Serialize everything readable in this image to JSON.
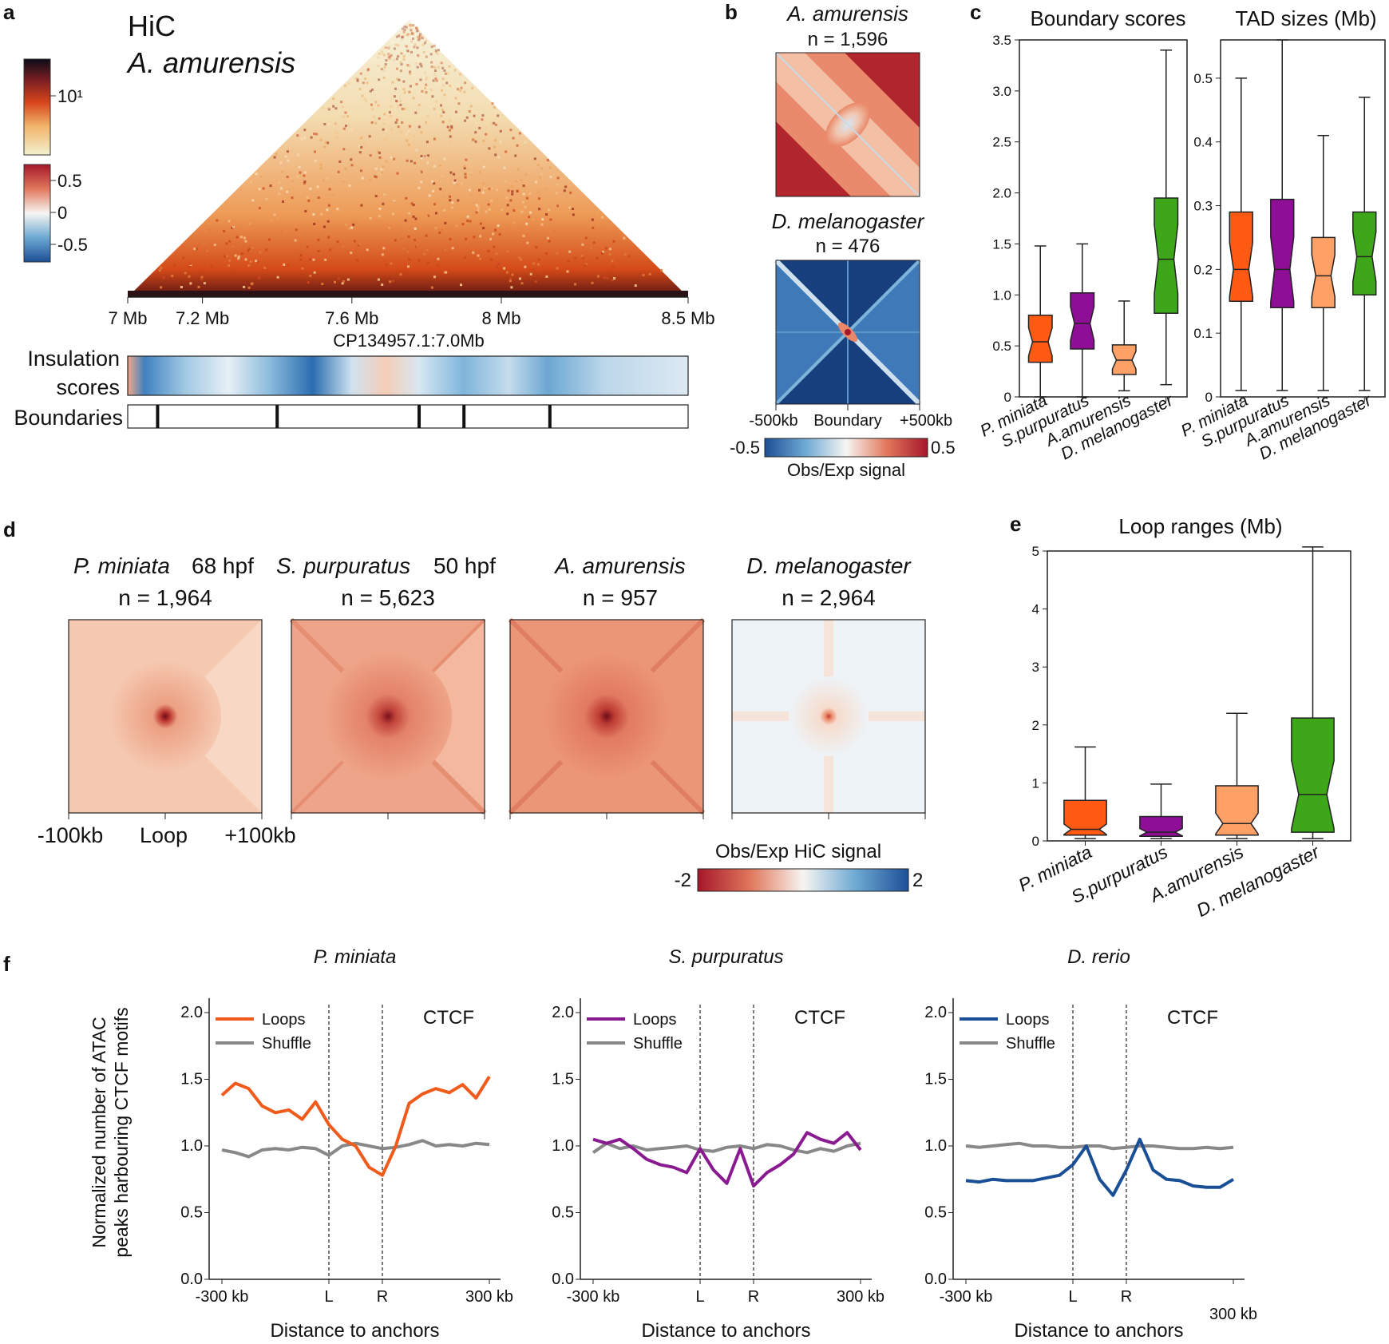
{
  "panels": {
    "a": "a",
    "b": "b",
    "c": "c",
    "d": "d",
    "e": "e",
    "f": "f"
  },
  "panel_a": {
    "title": "HiC",
    "species": "A. amurensis",
    "colorbar_top_label": "10¹",
    "colorbar_bottom_labels": [
      "0.5",
      "0",
      "-0.5"
    ],
    "x_ticks": [
      "7 Mb",
      "7.2 Mb",
      "7.6 Mb",
      "8 Mb",
      "8.5 Mb"
    ],
    "x_tick_values_mb": [
      7.0,
      7.2,
      7.6,
      8.0,
      8.5
    ],
    "region": "CP134957.1:7.0Mb",
    "insulation_label_1": "Insulation",
    "insulation_label_2": "scores",
    "boundaries_label": "Boundaries",
    "boundary_positions_mb": [
      7.08,
      7.4,
      7.78,
      7.9,
      8.13
    ]
  },
  "panel_b": {
    "maps": [
      {
        "species": "A. amurensis",
        "n": "n = 1,596"
      },
      {
        "species": "D. melanogaster",
        "n": "n = 476"
      }
    ],
    "x_labels": [
      "-500kb",
      "Boundary",
      "+500kb"
    ],
    "cbar_min": "-0.5",
    "cbar_max": "0.5",
    "cbar_label": "Obs/Exp signal"
  },
  "chart_data": [
    {
      "type": "box",
      "title": "Boundary scores",
      "categories": [
        "P. miniata",
        "S.purpuratus",
        "A.amurensis",
        "D. melanogaster"
      ],
      "colors": [
        "#ff5a14",
        "#8e0e96",
        "#ffa066",
        "#3ea619"
      ],
      "ylim": [
        0,
        3.5
      ],
      "yticks": [
        "0",
        "0.5",
        "1.0",
        "1.5",
        "2.0",
        "2.5",
        "3.0",
        "3.5"
      ],
      "boxes": [
        {
          "min": 0.0,
          "q1": 0.34,
          "median": 0.54,
          "q3": 0.8,
          "max": 1.48
        },
        {
          "min": 0.0,
          "q1": 0.47,
          "median": 0.72,
          "q3": 1.02,
          "max": 1.5
        },
        {
          "min": 0.06,
          "q1": 0.22,
          "median": 0.36,
          "q3": 0.51,
          "max": 0.94
        },
        {
          "min": 0.12,
          "q1": 0.82,
          "median": 1.35,
          "q3": 1.95,
          "max": 3.4
        }
      ]
    },
    {
      "type": "box",
      "title": "TAD sizes (Mb)",
      "categories": [
        "P. miniata",
        "S.purpuratus",
        "A.amurensis",
        "D. melanogaster"
      ],
      "colors": [
        "#ff5a14",
        "#8e0e96",
        "#ffa066",
        "#3ea619"
      ],
      "ylim": [
        0,
        0.56
      ],
      "yticks": [
        "0",
        "0.1",
        "0.2",
        "0.3",
        "0.4",
        "0.5"
      ],
      "boxes": [
        {
          "min": 0.01,
          "q1": 0.15,
          "median": 0.2,
          "q3": 0.29,
          "max": 0.5
        },
        {
          "min": 0.01,
          "q1": 0.14,
          "median": 0.2,
          "q3": 0.31,
          "max": 0.56
        },
        {
          "min": 0.01,
          "q1": 0.14,
          "median": 0.19,
          "q3": 0.25,
          "max": 0.41
        },
        {
          "min": 0.01,
          "q1": 0.16,
          "median": 0.22,
          "q3": 0.29,
          "max": 0.47
        }
      ]
    },
    {
      "type": "box",
      "title": "Loop ranges (Mb)",
      "categories": [
        "P. miniata",
        "S.purpuratus",
        "A.amurensis",
        "D. melanogaster"
      ],
      "colors": [
        "#ff5a14",
        "#8e0e96",
        "#ffa066",
        "#3ea619"
      ],
      "ylim": [
        0,
        5
      ],
      "yticks": [
        "0",
        "1",
        "2",
        "3",
        "4",
        "5"
      ],
      "boxes": [
        {
          "min": 0.04,
          "q1": 0.1,
          "median": 0.2,
          "q3": 0.7,
          "max": 1.62
        },
        {
          "min": 0.04,
          "q1": 0.08,
          "median": 0.15,
          "q3": 0.42,
          "max": 0.98
        },
        {
          "min": 0.04,
          "q1": 0.1,
          "median": 0.3,
          "q3": 0.95,
          "max": 2.2
        },
        {
          "min": 0.04,
          "q1": 0.15,
          "median": 0.8,
          "q3": 2.12,
          "max": 5.07
        }
      ]
    },
    {
      "type": "line",
      "title": "P. miniata",
      "xlabel": "Distance to anchors",
      "ylabel": "Normalized number of ATAC peaks harbouring CTCF motifs",
      "ylim": [
        0,
        2.0
      ],
      "yticks": [
        "0.0",
        "0.5",
        "1.0",
        "1.5",
        "2.0"
      ],
      "xticks": [
        "-300 kb",
        "L",
        "R",
        "300 kb"
      ],
      "annotation": "CTCF",
      "loop_color": "#f05a1a",
      "x": [
        0,
        3,
        6,
        9,
        12,
        15,
        18,
        21,
        24,
        27,
        30,
        33,
        36,
        39,
        42,
        45,
        48,
        51,
        54,
        57,
        60
      ],
      "series": [
        {
          "name": "Loops",
          "values": [
            1.38,
            1.47,
            1.43,
            1.3,
            1.25,
            1.27,
            1.2,
            1.33,
            1.16,
            1.05,
            1.0,
            0.84,
            0.78,
            1.0,
            1.32,
            1.39,
            1.43,
            1.4,
            1.46,
            1.36,
            1.52
          ]
        },
        {
          "name": "Shuffle",
          "values": [
            0.97,
            0.95,
            0.92,
            0.97,
            0.98,
            0.97,
            0.99,
            0.98,
            0.93,
            1.0,
            1.02,
            1.0,
            0.98,
            0.99,
            1.01,
            1.04,
            1.0,
            1.01,
            1.0,
            1.02,
            1.01
          ]
        }
      ]
    },
    {
      "type": "line",
      "title": "S. purpuratus",
      "xlabel": "Distance to anchors",
      "ylim": [
        0,
        2.0
      ],
      "yticks": [
        "0.0",
        "0.5",
        "1.0",
        "1.5",
        "2.0"
      ],
      "xticks": [
        "-300 kb",
        "L",
        "R",
        "300 kb"
      ],
      "annotation": "CTCF",
      "loop_color": "#8a1a8f",
      "x": [
        0,
        3,
        6,
        9,
        12,
        15,
        18,
        21,
        24,
        27,
        30,
        33,
        36,
        39,
        42,
        45,
        48,
        51,
        54,
        57,
        60
      ],
      "series": [
        {
          "name": "Loops",
          "values": [
            1.05,
            1.02,
            1.05,
            0.98,
            0.9,
            0.86,
            0.84,
            0.8,
            0.98,
            0.82,
            0.72,
            0.98,
            0.7,
            0.8,
            0.86,
            0.94,
            1.1,
            1.05,
            1.02,
            1.1,
            0.97
          ]
        },
        {
          "name": "Shuffle",
          "values": [
            0.95,
            1.02,
            0.98,
            1.0,
            0.97,
            0.98,
            0.99,
            1.0,
            0.97,
            0.96,
            0.99,
            1.0,
            0.98,
            1.01,
            1.0,
            0.97,
            0.95,
            0.98,
            0.96,
            1.0,
            1.02
          ]
        }
      ]
    },
    {
      "type": "line",
      "title": "D. rerio",
      "xlabel": "Distance to anchors",
      "ylim": [
        0,
        2.0
      ],
      "yticks": [
        "0.0",
        "0.5",
        "1.0",
        "1.5",
        "2.0"
      ],
      "xticks": [
        "-300 kb",
        "L",
        "R",
        "300 kb"
      ],
      "annotation": "CTCF",
      "loop_color": "#1a4f96",
      "x": [
        0,
        3,
        6,
        9,
        12,
        15,
        18,
        21,
        24,
        27,
        30,
        33,
        36,
        39,
        42,
        45,
        48,
        51,
        54,
        57,
        60
      ],
      "series": [
        {
          "name": "Loops",
          "values": [
            0.74,
            0.73,
            0.75,
            0.74,
            0.74,
            0.74,
            0.76,
            0.78,
            0.86,
            1.0,
            0.75,
            0.63,
            0.82,
            1.05,
            0.82,
            0.75,
            0.74,
            0.7,
            0.69,
            0.69,
            0.75
          ]
        },
        {
          "name": "Shuffle",
          "values": [
            1.0,
            0.99,
            1.0,
            1.01,
            1.02,
            1.0,
            1.0,
            0.99,
            0.99,
            1.0,
            1.0,
            0.98,
            0.99,
            1.0,
            1.0,
            0.99,
            0.98,
            0.98,
            0.99,
            0.98,
            0.99
          ]
        }
      ]
    }
  ],
  "panel_d": {
    "maps": [
      {
        "species": "P. miniata",
        "stage": "68 hpf",
        "n": "n = 1,964"
      },
      {
        "species": "S. purpuratus",
        "stage": "50 hpf",
        "n": "n = 5,623"
      },
      {
        "species": "A. amurensis",
        "stage": "",
        "n": "n = 957"
      },
      {
        "species": "D. melanogaster",
        "stage": "",
        "n": "n = 2,964"
      }
    ],
    "x_labels": [
      "-100kb",
      "Loop",
      "+100kb"
    ],
    "cbar_label": "Obs/Exp HiC signal",
    "cbar_min": "-2",
    "cbar_max": "2"
  },
  "panel_f": {
    "legend": [
      "Loops",
      "Shuffle"
    ],
    "ylabel_1": "Normalized number of ATAC",
    "ylabel_2": "peaks harbouring CTCF motifs"
  }
}
